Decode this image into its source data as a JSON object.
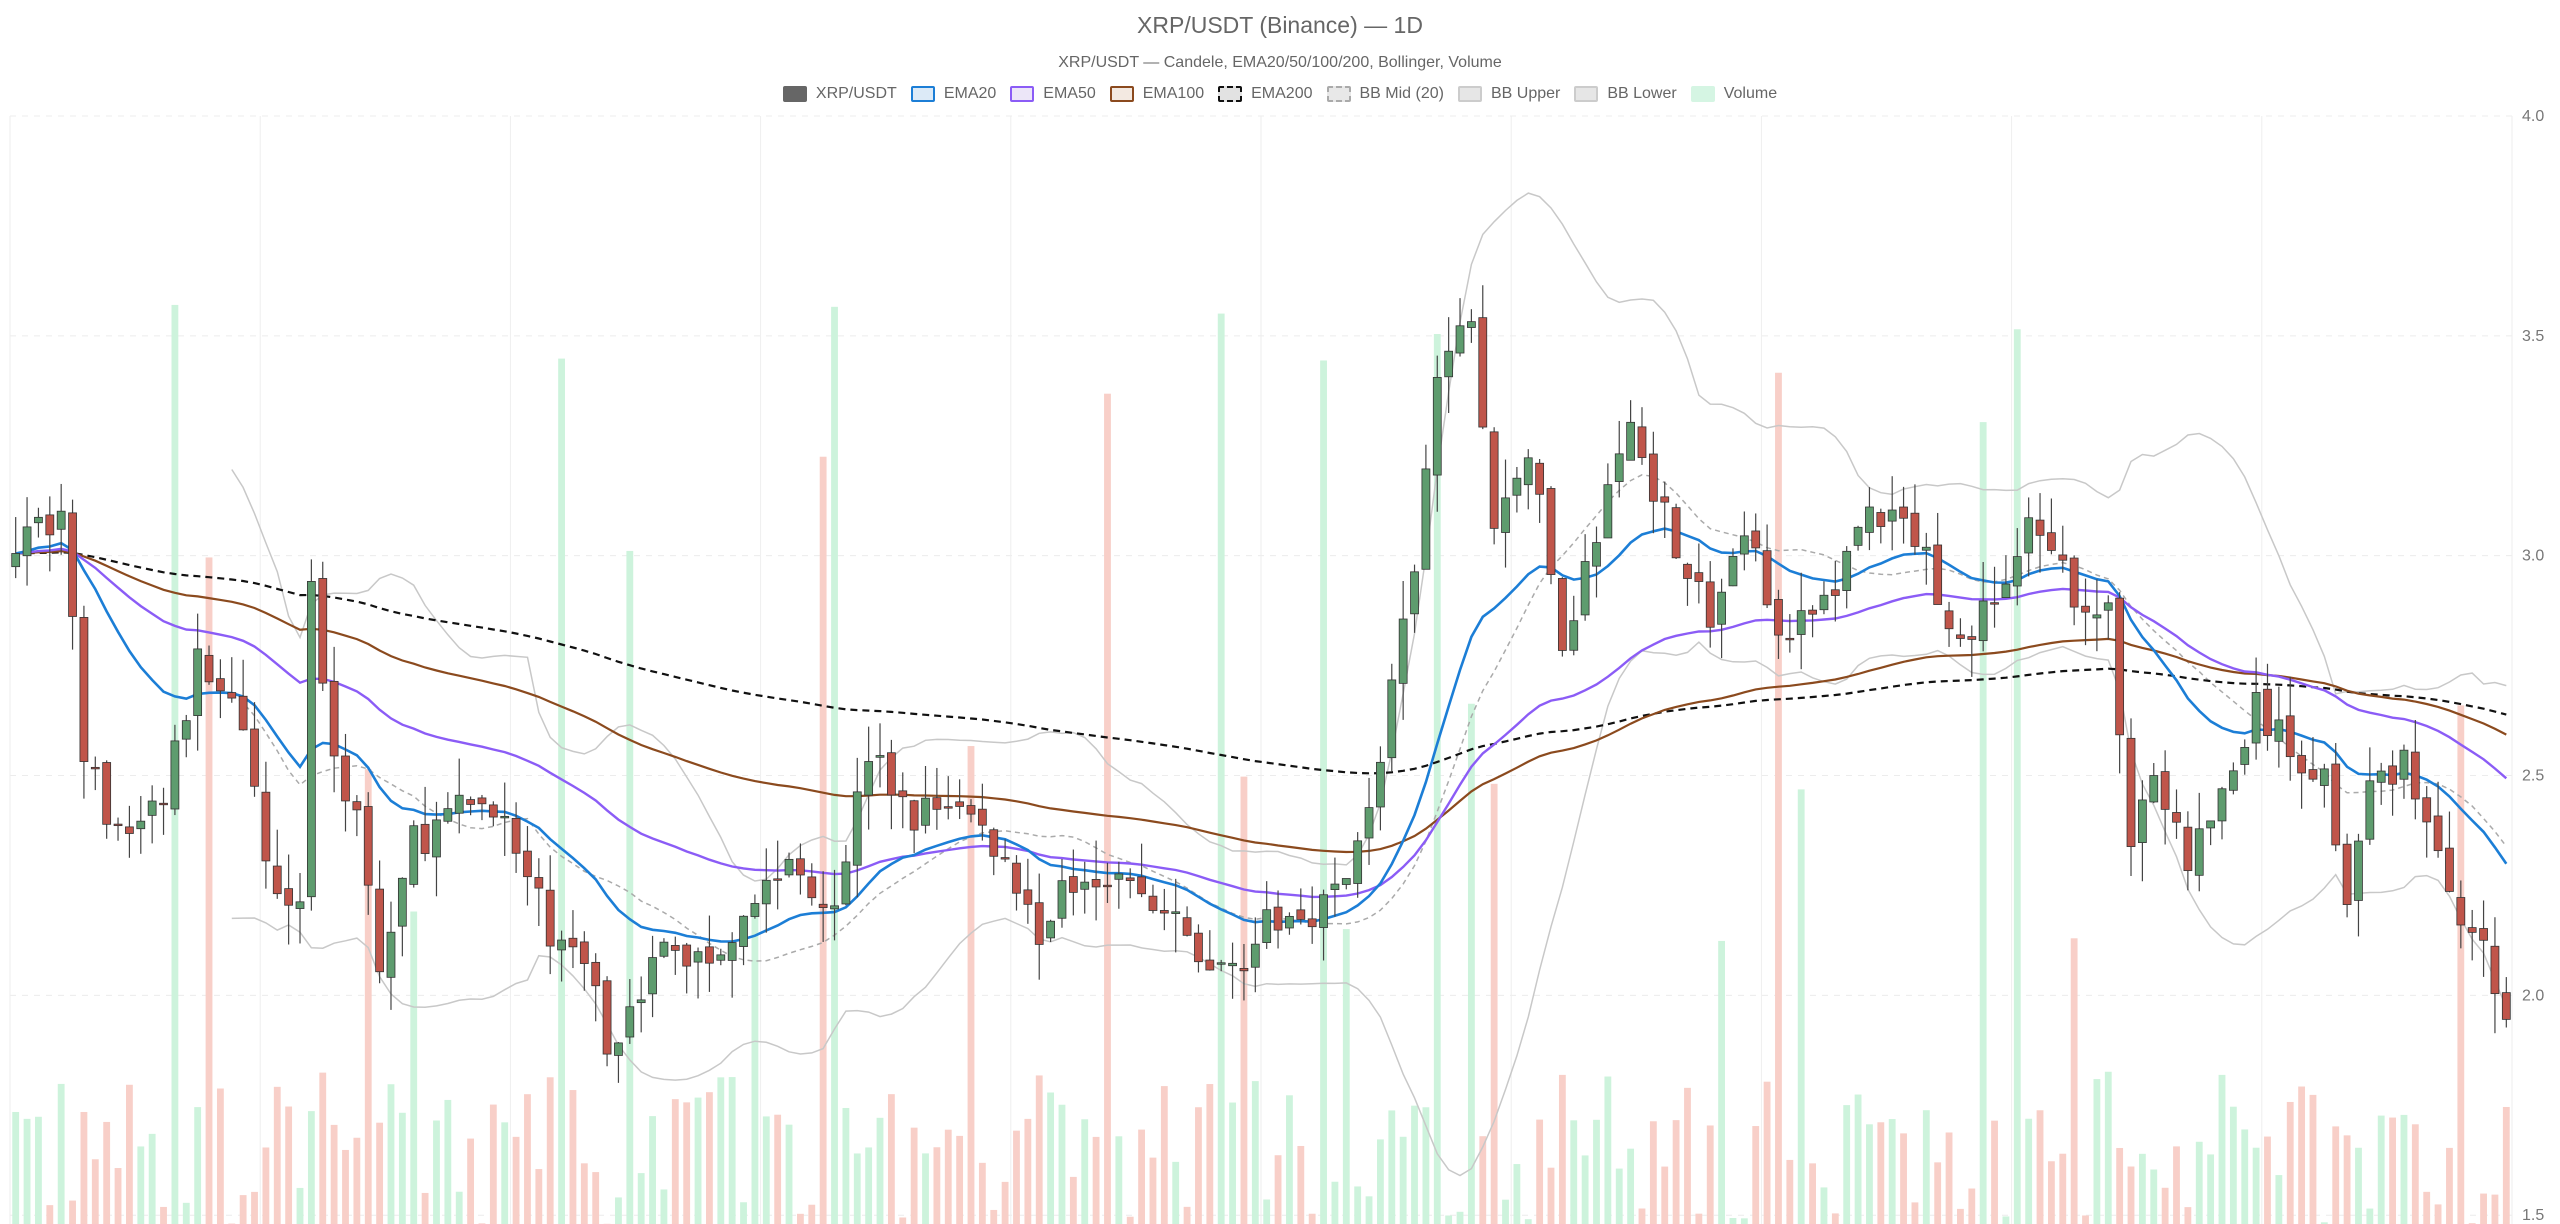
{
  "title": "XRP/USDT (Binance) — 1D",
  "subtitle": "XRP/USDT — Candele, EMA20/50/100/200, Bollinger, Volume",
  "legend": [
    {
      "label": "XRP/USDT",
      "fill": "#666666",
      "border": "#666666",
      "dash": false
    },
    {
      "label": "EMA20",
      "fill": "#dceaf7",
      "border": "#1c7ed6",
      "dash": false
    },
    {
      "label": "EMA50",
      "fill": "#ece6f8",
      "border": "#8b5cf6",
      "dash": false
    },
    {
      "label": "EMA100",
      "fill": "#f3e9e1",
      "border": "#8b4a1e",
      "dash": false
    },
    {
      "label": "EMA200",
      "fill": "#e2e2e2",
      "border": "#111111",
      "dash": true
    },
    {
      "label": "BB Mid (20)",
      "fill": "#e8e8e8",
      "border": "#aaaaaa",
      "dash": true
    },
    {
      "label": "BB Upper",
      "fill": "#e6e6e6",
      "border": "#cccccc",
      "dash": false
    },
    {
      "label": "BB Lower",
      "fill": "#e6e6e6",
      "border": "#cccccc",
      "dash": false
    },
    {
      "label": "Volume",
      "fill": "#d5f5e3",
      "border": "#d5f5e3",
      "dash": false
    }
  ],
  "chart_data": {
    "type": "candlestick",
    "title": "XRP/USDT (Binance) — 1D",
    "y_axis": {
      "position": "right",
      "min": 1.48,
      "max": 4.0,
      "ticks": [
        1.5,
        2.0,
        2.5,
        3.0,
        3.5,
        4.0
      ],
      "tick_labels": [
        "1.5",
        "2.0",
        "2.5",
        "3.0",
        "3.5",
        "4.0"
      ]
    },
    "grid": true,
    "legend_position": "top-center",
    "colors": {
      "up": "#5e9c6e",
      "down": "#c0554a",
      "ema20": "#1c7ed6",
      "ema50": "#8b5cf6",
      "ema100": "#8b4a1e",
      "ema200": "#111111",
      "bb_mid": "#aaaaaa",
      "bb_band": "#c8c8c8",
      "volume_up": "#cdf3dc",
      "volume_down": "#f8cfc8"
    },
    "candles_approx": 220,
    "price_path_control_points": [
      [
        0,
        3.05
      ],
      [
        4,
        3.1
      ],
      [
        6,
        2.55
      ],
      [
        9,
        2.35
      ],
      [
        13,
        2.45
      ],
      [
        16,
        2.75
      ],
      [
        19,
        2.7
      ],
      [
        22,
        2.3
      ],
      [
        25,
        2.22
      ],
      [
        26,
        2.95
      ],
      [
        28,
        2.5
      ],
      [
        30,
        2.45
      ],
      [
        32,
        2.05
      ],
      [
        35,
        2.35
      ],
      [
        38,
        2.4
      ],
      [
        42,
        2.45
      ],
      [
        45,
        2.25
      ],
      [
        48,
        2.1
      ],
      [
        51,
        2.05
      ],
      [
        52,
        1.85
      ],
      [
        54,
        2.0
      ],
      [
        57,
        2.1
      ],
      [
        61,
        2.08
      ],
      [
        64,
        2.2
      ],
      [
        68,
        2.3
      ],
      [
        72,
        2.22
      ],
      [
        75,
        2.55
      ],
      [
        79,
        2.4
      ],
      [
        82,
        2.45
      ],
      [
        86,
        2.35
      ],
      [
        90,
        2.15
      ],
      [
        94,
        2.3
      ],
      [
        98,
        2.25
      ],
      [
        102,
        2.15
      ],
      [
        106,
        2.05
      ],
      [
        110,
        2.15
      ],
      [
        114,
        2.2
      ],
      [
        117,
        2.25
      ],
      [
        120,
        2.55
      ],
      [
        123,
        2.95
      ],
      [
        125,
        3.4
      ],
      [
        128,
        3.55
      ],
      [
        130,
        3.05
      ],
      [
        133,
        3.25
      ],
      [
        136,
        2.8
      ],
      [
        139,
        3.05
      ],
      [
        142,
        3.3
      ],
      [
        145,
        3.1
      ],
      [
        149,
        2.85
      ],
      [
        152,
        3.05
      ],
      [
        156,
        2.8
      ],
      [
        159,
        2.9
      ],
      [
        163,
        3.1
      ],
      [
        167,
        3.05
      ],
      [
        171,
        2.8
      ],
      [
        174,
        2.9
      ],
      [
        177,
        3.05
      ],
      [
        180,
        2.95
      ],
      [
        184,
        2.85
      ],
      [
        186,
        2.38
      ],
      [
        188,
        2.5
      ],
      [
        191,
        2.3
      ],
      [
        194,
        2.45
      ],
      [
        197,
        2.65
      ],
      [
        200,
        2.55
      ],
      [
        203,
        2.5
      ],
      [
        205,
        2.25
      ],
      [
        207,
        2.45
      ],
      [
        210,
        2.55
      ],
      [
        213,
        2.3
      ],
      [
        216,
        2.15
      ],
      [
        219,
        1.95
      ]
    ]
  }
}
